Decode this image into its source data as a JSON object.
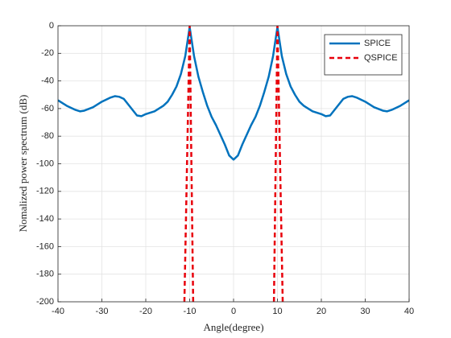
{
  "chart_data": {
    "type": "line",
    "xlabel": "Angle(degree)",
    "ylabel": "Nomalized power spectrum (dB)",
    "xlim": [
      -40,
      40
    ],
    "xticks": [
      -40,
      -30,
      -20,
      -10,
      0,
      10,
      20,
      30,
      40
    ],
    "ylim": [
      -200,
      0
    ],
    "yticks": [
      -200,
      -180,
      -160,
      -140,
      -120,
      -100,
      -80,
      -60,
      -40,
      -20,
      0
    ],
    "grid": true,
    "legend": "upper-right",
    "series": [
      {
        "name": "SPICE",
        "color": "#0072bd",
        "dash": "solid",
        "x": [
          -40,
          -38,
          -36,
          -35,
          -34,
          -32,
          -30,
          -28,
          -27,
          -26,
          -25,
          -24,
          -23,
          -22,
          -21,
          -20,
          -18,
          -16,
          -15,
          -14,
          -13,
          -12,
          -11,
          -10,
          -9,
          -8,
          -7,
          -6,
          -5,
          -4,
          -3,
          -2,
          -1,
          0,
          1,
          2,
          3,
          4,
          5,
          6,
          7,
          8,
          9,
          10,
          11,
          12,
          13,
          14,
          15,
          16,
          18,
          20,
          21,
          22,
          23,
          24,
          25,
          26,
          27,
          28,
          30,
          32,
          34,
          35,
          36,
          38,
          40
        ],
        "values": [
          -54,
          -58,
          -61,
          -62,
          -61.5,
          -59,
          -55,
          -52,
          -51,
          -51.5,
          -53,
          -57,
          -61,
          -65,
          -65.5,
          -64,
          -62,
          -58,
          -55,
          -50,
          -44,
          -35,
          -22,
          -1,
          -22,
          -37,
          -48,
          -58,
          -66,
          -72,
          -79,
          -86,
          -94,
          -97,
          -94,
          -86,
          -79,
          -72,
          -66,
          -58,
          -48,
          -37,
          -22,
          -1,
          -22,
          -35,
          -44,
          -50,
          -55,
          -58,
          -62,
          -64,
          -65.5,
          -65,
          -61,
          -57,
          -53,
          -51.5,
          -51,
          -52,
          -55,
          -59,
          -61.5,
          -62,
          -61,
          -58,
          -54
        ]
      },
      {
        "name": "QSPICE",
        "color": "#e8000b",
        "dash": "dashed",
        "x": [
          -11.2,
          -10,
          -9.2,
          0,
          9.2,
          10,
          11.2
        ],
        "values": [
          -200,
          0,
          -200,
          null,
          -200,
          0,
          -200
        ]
      }
    ]
  }
}
